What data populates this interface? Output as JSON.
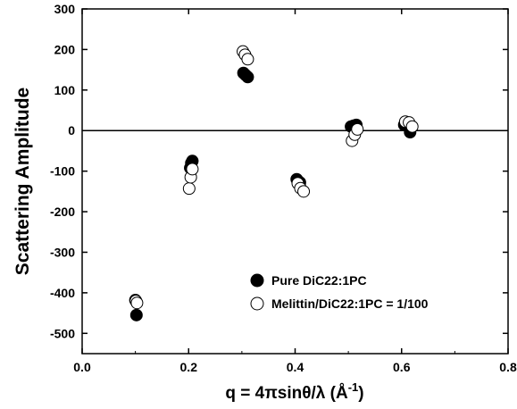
{
  "chart_data": {
    "type": "scatter",
    "title": "",
    "xlabel_prefix": "q = 4",
    "xlabel_pi": "π",
    "xlabel_mid": "sin",
    "xlabel_theta": "θ",
    "xlabel_slash": "/",
    "xlabel_lambda": "λ",
    "xlabel_unit": " (Å",
    "xlabel_sup": "-1",
    "xlabel_close": ")",
    "ylabel": "Scattering Amplitude",
    "xlim": [
      0.0,
      0.8
    ],
    "ylim": [
      -550,
      300
    ],
    "x_ticks": [
      "0.0",
      "0.2",
      "0.4",
      "0.6",
      "0.8"
    ],
    "y_ticks": [
      "300",
      "200",
      "100",
      "0",
      "-100",
      "-200",
      "-300",
      "-400",
      "-500"
    ],
    "zero_line": true,
    "grid": false,
    "legend_position": "bottom-right",
    "series": [
      {
        "name": "Pure DiC22:1PC",
        "marker": "filled-circle",
        "points": [
          [
            0.1,
            -418
          ],
          [
            0.102,
            -455
          ],
          [
            0.203,
            -92
          ],
          [
            0.205,
            -80
          ],
          [
            0.207,
            -75
          ],
          [
            0.303,
            142
          ],
          [
            0.307,
            137
          ],
          [
            0.311,
            132
          ],
          [
            0.403,
            -120
          ],
          [
            0.406,
            -125
          ],
          [
            0.409,
            -128
          ],
          [
            0.505,
            10
          ],
          [
            0.51,
            12
          ],
          [
            0.515,
            14
          ],
          [
            0.605,
            14
          ],
          [
            0.61,
            12
          ],
          [
            0.616,
            -4
          ]
        ]
      },
      {
        "name": "Melittin/DiC22:1PC = 1/100",
        "marker": "open-circle",
        "points": [
          [
            0.101,
            -420
          ],
          [
            0.103,
            -425
          ],
          [
            0.201,
            -143
          ],
          [
            0.204,
            -115
          ],
          [
            0.207,
            -95
          ],
          [
            0.302,
            195
          ],
          [
            0.306,
            187
          ],
          [
            0.311,
            176
          ],
          [
            0.405,
            -130
          ],
          [
            0.41,
            -142
          ],
          [
            0.416,
            -150
          ],
          [
            0.507,
            -25
          ],
          [
            0.512,
            -10
          ],
          [
            0.517,
            3
          ],
          [
            0.607,
            22
          ],
          [
            0.614,
            20
          ],
          [
            0.62,
            10
          ]
        ]
      }
    ]
  }
}
